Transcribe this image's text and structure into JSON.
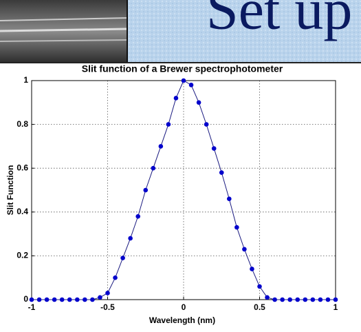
{
  "slide_heading": "Set up",
  "chart_data": {
    "type": "line",
    "title": "Slit function of a Brewer spectrophotometer",
    "xlabel": "Wavelength (nm)",
    "ylabel": "Slit Function",
    "x": [
      -1,
      -0.95,
      -0.9,
      -0.85,
      -0.8,
      -0.75,
      -0.7,
      -0.65,
      -0.6,
      -0.55,
      -0.5,
      -0.45,
      -0.4,
      -0.35,
      -0.3,
      -0.25,
      -0.2,
      -0.15,
      -0.1,
      -0.05,
      0,
      0.05,
      0.1,
      0.15,
      0.2,
      0.25,
      0.3,
      0.35,
      0.4,
      0.45,
      0.5,
      0.55,
      0.6,
      0.65,
      0.7,
      0.75,
      0.8,
      0.85,
      0.9,
      0.95,
      1
    ],
    "series": [
      {
        "color": "#0000cc",
        "values": [
          0,
          0,
          0,
          0,
          0,
          0,
          0,
          0,
          0,
          0.01,
          0.03,
          0.1,
          0.19,
          0.28,
          0.38,
          0.5,
          0.6,
          0.7,
          0.8,
          0.92,
          1.0,
          0.98,
          0.9,
          0.8,
          0.69,
          0.58,
          0.46,
          0.33,
          0.23,
          0.14,
          0.06,
          0.01,
          0,
          0,
          0,
          0,
          0,
          0,
          0,
          0,
          0
        ]
      }
    ],
    "xlim": [
      -1,
      1
    ],
    "xticks": [
      -1,
      -0.5,
      0,
      0.5,
      1
    ],
    "ylim": [
      0,
      1
    ],
    "yticks": [
      0,
      0.2,
      0.4,
      0.6,
      0.8,
      1
    ],
    "grid": true
  }
}
